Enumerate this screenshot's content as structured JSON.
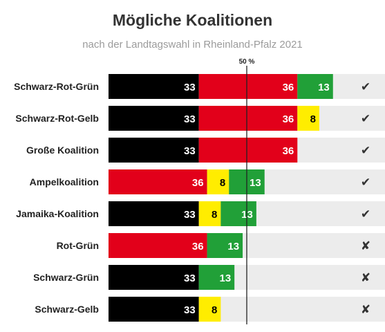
{
  "title": "Mögliche Koalitionen",
  "subtitle": "nach der Landtagswahl in Rheinland-Pfalz 2021",
  "chart_data": {
    "type": "bar",
    "stacked": true,
    "orientation": "horizontal",
    "threshold": {
      "value": 50.5,
      "label": "50 %"
    },
    "scale_max": 101,
    "check_icon": "✔",
    "cross_icon": "✘",
    "parties": {
      "CDU": "#000000",
      "SPD": "#e2001a",
      "GRUENE": "#21a038",
      "FDP": "#ffed00"
    },
    "label_colors": {
      "CDU": "#ffffff",
      "SPD": "#ffffff",
      "GRUENE": "#ffffff",
      "FDP": "#000000"
    },
    "categories": [
      "Schwarz-Rot-Grün",
      "Schwarz-Rot-Gelb",
      "Große Koalition",
      "Ampelkoalition",
      "Jamaika-Koalition",
      "Rot-Grün",
      "Schwarz-Grün",
      "Schwarz-Gelb"
    ],
    "rows": [
      {
        "label": "Schwarz-Rot-Grün",
        "majority": true,
        "segments": [
          {
            "party": "CDU",
            "value": 33
          },
          {
            "party": "SPD",
            "value": 36
          },
          {
            "party": "GRUENE",
            "value": 13
          }
        ]
      },
      {
        "label": "Schwarz-Rot-Gelb",
        "majority": true,
        "segments": [
          {
            "party": "CDU",
            "value": 33
          },
          {
            "party": "SPD",
            "value": 36
          },
          {
            "party": "FDP",
            "value": 8
          }
        ]
      },
      {
        "label": "Große Koalition",
        "majority": true,
        "segments": [
          {
            "party": "CDU",
            "value": 33
          },
          {
            "party": "SPD",
            "value": 36
          }
        ]
      },
      {
        "label": "Ampelkoalition",
        "majority": true,
        "segments": [
          {
            "party": "SPD",
            "value": 36
          },
          {
            "party": "FDP",
            "value": 8
          },
          {
            "party": "GRUENE",
            "value": 13
          }
        ]
      },
      {
        "label": "Jamaika-Koalition",
        "majority": true,
        "segments": [
          {
            "party": "CDU",
            "value": 33
          },
          {
            "party": "FDP",
            "value": 8
          },
          {
            "party": "GRUENE",
            "value": 13
          }
        ]
      },
      {
        "label": "Rot-Grün",
        "majority": false,
        "segments": [
          {
            "party": "SPD",
            "value": 36
          },
          {
            "party": "GRUENE",
            "value": 13
          }
        ]
      },
      {
        "label": "Schwarz-Grün",
        "majority": false,
        "segments": [
          {
            "party": "CDU",
            "value": 33
          },
          {
            "party": "GRUENE",
            "value": 13
          }
        ]
      },
      {
        "label": "Schwarz-Gelb",
        "majority": false,
        "segments": [
          {
            "party": "CDU",
            "value": 33
          },
          {
            "party": "FDP",
            "value": 8
          }
        ]
      }
    ]
  }
}
